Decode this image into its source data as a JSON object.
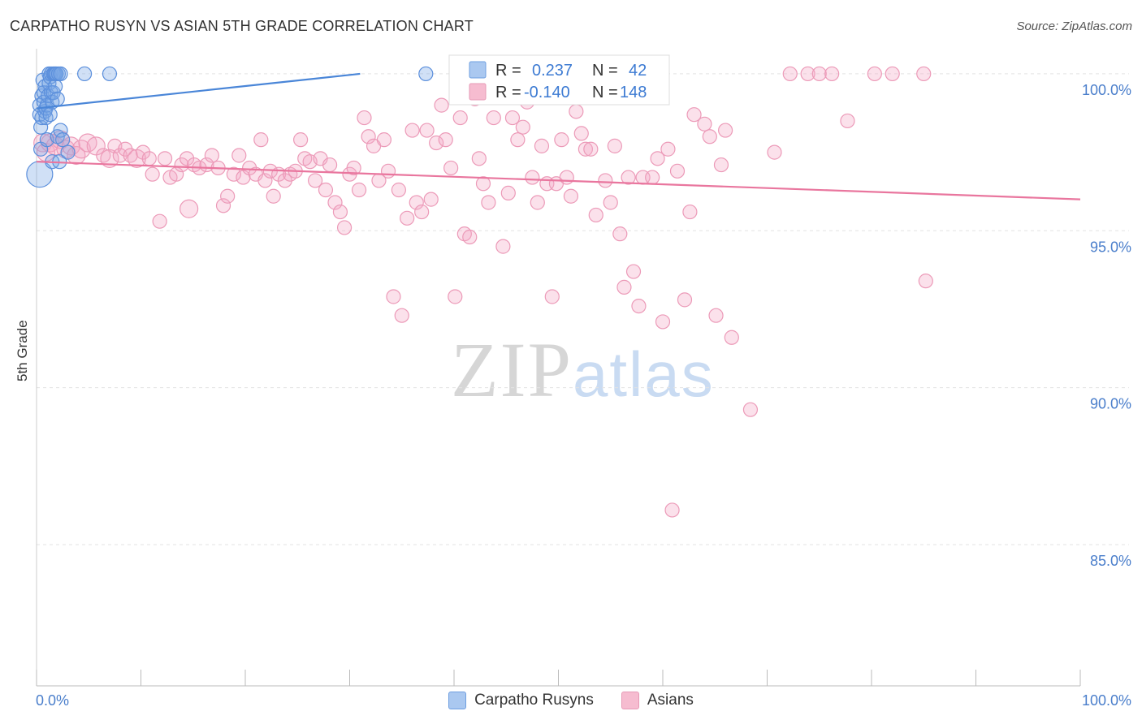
{
  "header": {
    "title": "CARPATHO RUSYN VS ASIAN 5TH GRADE CORRELATION CHART",
    "source": "Source: ZipAtlas.com"
  },
  "watermark": {
    "zip": "ZIP",
    "atlas": "atlas"
  },
  "colors": {
    "blue": "#4a86d8",
    "pink": "#e9769e",
    "tick_text": "#4a7ecb"
  },
  "stats": {
    "blue": {
      "r_label": "R =",
      "r_value": "0.237",
      "n_label": "N =",
      "n_value": "42"
    },
    "pink": {
      "r_label": "R =",
      "r_value": "-0.140",
      "n_label": "N =",
      "n_value": "148"
    }
  },
  "legend": [
    {
      "label": "Carpatho Rusyns",
      "color": "#aac8f0"
    },
    {
      "label": "Asians",
      "color": "#f6bcd0"
    }
  ],
  "chart_data": {
    "type": "scatter",
    "title": "CARPATHO RUSYN VS ASIAN 5TH GRADE CORRELATION CHART",
    "xlabel": "",
    "ylabel": "5th Grade",
    "xlim": [
      0,
      100
    ],
    "ylim": [
      80.5,
      100.8
    ],
    "x_tick_labels": [
      "0.0%",
      "100.0%"
    ],
    "y_ticks": [
      85,
      90,
      95,
      100
    ],
    "y_tick_labels": [
      "85.0%",
      "90.0%",
      "95.0%",
      "100.0%"
    ],
    "grid": true,
    "series": [
      {
        "name": "Carpatho Rusyns",
        "color": "#4a86d8",
        "trend": {
          "x": [
            0,
            31
          ],
          "y": [
            98.9,
            100.0
          ]
        },
        "points": [
          [
            0.3,
            96.8,
            3
          ],
          [
            0.3,
            98.7,
            1
          ],
          [
            0.3,
            99.0,
            1
          ],
          [
            0.4,
            97.6,
            1
          ],
          [
            0.4,
            98.3,
            1
          ],
          [
            0.5,
            99.3,
            1
          ],
          [
            0.5,
            98.6,
            1
          ],
          [
            0.6,
            99.8,
            1
          ],
          [
            0.7,
            99.4,
            1
          ],
          [
            0.7,
            99.1,
            1
          ],
          [
            0.8,
            98.8,
            1
          ],
          [
            0.8,
            99.6,
            1
          ],
          [
            0.9,
            98.6,
            1
          ],
          [
            0.9,
            98.9,
            1
          ],
          [
            1.0,
            97.9,
            1
          ],
          [
            1.0,
            99.0,
            1
          ],
          [
            1.1,
            99.3,
            1
          ],
          [
            1.2,
            100.0,
            1
          ],
          [
            1.2,
            99.7,
            1
          ],
          [
            1.3,
            98.7,
            1
          ],
          [
            1.3,
            99.9,
            1
          ],
          [
            1.4,
            100.0,
            1
          ],
          [
            1.4,
            99.4,
            1
          ],
          [
            1.5,
            97.2,
            1
          ],
          [
            1.5,
            99.1,
            1
          ],
          [
            1.6,
            100.0,
            1
          ],
          [
            1.6,
            99.4,
            1
          ],
          [
            1.7,
            100.0,
            1
          ],
          [
            1.8,
            100.0,
            1
          ],
          [
            1.8,
            99.6,
            1
          ],
          [
            1.9,
            100.0,
            1
          ],
          [
            2.0,
            98.0,
            1
          ],
          [
            2.0,
            99.2,
            1
          ],
          [
            2.1,
            100.0,
            1
          ],
          [
            2.2,
            97.2,
            1
          ],
          [
            2.3,
            100.0,
            1
          ],
          [
            2.3,
            98.2,
            1
          ],
          [
            2.5,
            97.9,
            1
          ],
          [
            3.0,
            97.5,
            1
          ],
          [
            4.6,
            100.0,
            1
          ],
          [
            7.0,
            100.0,
            1
          ],
          [
            37.3,
            100.0,
            1
          ]
        ]
      },
      {
        "name": "Asians",
        "color": "#e9769e",
        "trend": {
          "x": [
            0,
            100
          ],
          "y": [
            97.2,
            96.0
          ]
        },
        "points": [
          [
            0.6,
            97.8,
            2
          ],
          [
            0.9,
            97.5,
            2
          ],
          [
            1.3,
            97.8,
            2
          ],
          [
            1.8,
            97.7,
            2
          ],
          [
            2.3,
            97.9,
            2
          ],
          [
            2.8,
            97.6,
            2
          ],
          [
            3.3,
            97.7,
            2
          ],
          [
            3.8,
            97.4,
            2
          ],
          [
            4.3,
            97.6,
            2
          ],
          [
            4.9,
            97.8,
            2
          ],
          [
            5.7,
            97.7,
            2
          ],
          [
            6.4,
            97.4,
            1
          ],
          [
            7.0,
            97.3,
            2
          ],
          [
            7.5,
            97.7,
            1
          ],
          [
            8.0,
            97.4,
            1
          ],
          [
            8.5,
            97.6,
            1
          ],
          [
            9.0,
            97.4,
            1
          ],
          [
            9.6,
            97.3,
            2
          ],
          [
            10.2,
            97.5,
            1
          ],
          [
            10.8,
            97.3,
            1
          ],
          [
            11.1,
            96.8,
            1
          ],
          [
            11.8,
            95.3,
            1
          ],
          [
            12.3,
            97.3,
            1
          ],
          [
            12.8,
            96.7,
            1
          ],
          [
            13.4,
            96.8,
            1
          ],
          [
            13.9,
            97.1,
            1
          ],
          [
            14.4,
            97.3,
            1
          ],
          [
            14.6,
            95.7,
            2
          ],
          [
            15.1,
            97.1,
            1
          ],
          [
            15.6,
            97.0,
            1
          ],
          [
            16.3,
            97.1,
            1
          ],
          [
            16.8,
            97.4,
            1
          ],
          [
            17.4,
            97.0,
            1
          ],
          [
            17.9,
            95.8,
            1
          ],
          [
            18.3,
            96.1,
            1
          ],
          [
            18.9,
            96.8,
            1
          ],
          [
            19.4,
            97.4,
            1
          ],
          [
            19.8,
            96.7,
            1
          ],
          [
            20.4,
            97.0,
            1
          ],
          [
            21.0,
            96.8,
            1
          ],
          [
            21.5,
            97.9,
            1
          ],
          [
            21.9,
            96.6,
            1
          ],
          [
            22.4,
            96.9,
            1
          ],
          [
            22.7,
            96.1,
            1
          ],
          [
            23.2,
            96.8,
            1
          ],
          [
            23.8,
            96.6,
            1
          ],
          [
            24.3,
            96.8,
            1
          ],
          [
            24.8,
            96.9,
            1
          ],
          [
            25.3,
            97.9,
            1
          ],
          [
            25.7,
            97.3,
            1
          ],
          [
            26.2,
            97.2,
            1
          ],
          [
            26.7,
            96.6,
            1
          ],
          [
            27.2,
            97.3,
            1
          ],
          [
            27.7,
            96.3,
            1
          ],
          [
            28.1,
            97.1,
            1
          ],
          [
            28.6,
            95.9,
            1
          ],
          [
            29.1,
            95.6,
            1
          ],
          [
            29.5,
            95.1,
            1
          ],
          [
            30.0,
            96.8,
            1
          ],
          [
            30.4,
            97.0,
            1
          ],
          [
            30.9,
            96.3,
            1
          ],
          [
            31.4,
            98.6,
            1
          ],
          [
            31.8,
            98.0,
            1
          ],
          [
            32.3,
            97.7,
            1
          ],
          [
            32.8,
            96.6,
            1
          ],
          [
            33.3,
            97.9,
            1
          ],
          [
            33.7,
            96.9,
            1
          ],
          [
            34.2,
            92.9,
            1
          ],
          [
            34.7,
            96.3,
            1
          ],
          [
            35.0,
            92.3,
            1
          ],
          [
            35.5,
            95.4,
            1
          ],
          [
            36.0,
            98.2,
            1
          ],
          [
            36.4,
            95.9,
            1
          ],
          [
            36.9,
            95.6,
            1
          ],
          [
            37.4,
            98.2,
            1
          ],
          [
            37.8,
            96.0,
            1
          ],
          [
            38.3,
            97.8,
            1
          ],
          [
            38.8,
            99.0,
            1
          ],
          [
            39.2,
            97.9,
            1
          ],
          [
            39.7,
            97.0,
            1
          ],
          [
            40.1,
            92.9,
            1
          ],
          [
            40.6,
            98.6,
            1
          ],
          [
            41.0,
            94.9,
            1
          ],
          [
            41.5,
            94.8,
            1
          ],
          [
            42.0,
            99.2,
            1
          ],
          [
            42.4,
            97.3,
            1
          ],
          [
            42.8,
            96.5,
            1
          ],
          [
            43.3,
            95.9,
            1
          ],
          [
            43.8,
            98.6,
            1
          ],
          [
            44.2,
            99.3,
            1
          ],
          [
            44.7,
            94.5,
            1
          ],
          [
            45.2,
            96.2,
            1
          ],
          [
            45.6,
            98.6,
            1
          ],
          [
            46.1,
            97.9,
            1
          ],
          [
            46.6,
            98.3,
            1
          ],
          [
            47.0,
            99.1,
            1
          ],
          [
            47.5,
            96.7,
            1
          ],
          [
            48.0,
            95.9,
            1
          ],
          [
            48.4,
            97.7,
            1
          ],
          [
            48.9,
            96.5,
            1
          ],
          [
            49.4,
            92.9,
            1
          ],
          [
            49.8,
            96.5,
            1
          ],
          [
            50.3,
            97.9,
            1
          ],
          [
            50.8,
            96.7,
            1
          ],
          [
            51.2,
            96.1,
            1
          ],
          [
            51.7,
            98.8,
            1
          ],
          [
            52.2,
            98.1,
            1
          ],
          [
            52.6,
            97.6,
            1
          ],
          [
            53.1,
            97.6,
            1
          ],
          [
            53.6,
            95.5,
            1
          ],
          [
            54.0,
            99.3,
            1
          ],
          [
            54.5,
            96.6,
            1
          ],
          [
            55.0,
            95.9,
            1
          ],
          [
            55.4,
            97.7,
            1
          ],
          [
            55.9,
            94.9,
            1
          ],
          [
            56.3,
            93.2,
            1
          ],
          [
            56.7,
            96.7,
            1
          ],
          [
            57.2,
            93.7,
            1
          ],
          [
            57.7,
            92.6,
            1
          ],
          [
            58.1,
            96.7,
            1
          ],
          [
            58.6,
            99.3,
            1
          ],
          [
            59.0,
            96.7,
            1
          ],
          [
            59.5,
            97.3,
            1
          ],
          [
            60.0,
            92.1,
            1
          ],
          [
            60.5,
            97.6,
            1
          ],
          [
            60.9,
            86.1,
            1
          ],
          [
            61.4,
            96.9,
            1
          ],
          [
            62.1,
            92.8,
            1
          ],
          [
            62.6,
            95.6,
            1
          ],
          [
            63.0,
            98.7,
            1
          ],
          [
            64.0,
            98.4,
            1
          ],
          [
            64.5,
            98.0,
            1
          ],
          [
            65.1,
            92.3,
            1
          ],
          [
            65.6,
            97.1,
            1
          ],
          [
            66.0,
            98.2,
            1
          ],
          [
            66.6,
            91.6,
            1
          ],
          [
            68.4,
            89.3,
            1
          ],
          [
            70.7,
            97.5,
            1
          ],
          [
            72.2,
            100.0,
            1
          ],
          [
            73.9,
            100.0,
            1
          ],
          [
            75.0,
            100.0,
            1
          ],
          [
            76.2,
            100.0,
            1
          ],
          [
            77.7,
            98.5,
            1
          ],
          [
            80.3,
            100.0,
            1
          ],
          [
            82.0,
            100.0,
            1
          ],
          [
            85.0,
            100.0,
            1
          ],
          [
            85.2,
            93.4,
            1
          ]
        ]
      }
    ]
  }
}
